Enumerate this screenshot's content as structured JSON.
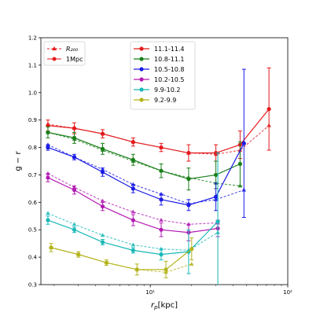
{
  "chart_data": {
    "type": "line",
    "xlabel": "r_p[kpc]",
    "xlabel_main": "r",
    "xlabel_sub": "p",
    "xlabel_unit": "[kpc]",
    "ylabel": "g − r",
    "xscale": "log",
    "xlim": [
      1.6,
      100
    ],
    "ylim": [
      0.3,
      1.2
    ],
    "xticks": [
      {
        "value": 10,
        "label": "10¹"
      },
      {
        "value": 100,
        "label": "10²"
      }
    ],
    "yticks": [
      0.3,
      0.4,
      0.5,
      0.6,
      0.7,
      0.8,
      0.9,
      1.0,
      1.1,
      1.2
    ],
    "ytick_labels": [
      "0.3",
      "0.4",
      "0.5",
      "0.6",
      "0.7",
      "0.8",
      "0.9",
      "1.0",
      "1.1",
      "1.2"
    ],
    "legend_style": [
      {
        "label": "R₂₀₀",
        "style": "dashed",
        "marker": "triangle"
      },
      {
        "label": "1Mpc",
        "style": "solid",
        "marker": "circle"
      }
    ],
    "legend_mass": [
      {
        "label": "11.1-11.4",
        "color": "#e41a1c"
      },
      {
        "label": "10.8-11.1",
        "color": "#1a7f1a"
      },
      {
        "label": "10.5-10.8",
        "color": "#1a1ae6"
      },
      {
        "label": "10.2-10.5",
        "color": "#b31ab3"
      },
      {
        "label": "9.9-10.2",
        "color": "#1ab8b8"
      },
      {
        "label": "9.2-9.9",
        "color": "#b3b31a"
      }
    ],
    "series": [
      {
        "color": "#e41a1c",
        "mpc": {
          "x": [
            1.8,
            2.8,
            4.5,
            7.5,
            12,
            19,
            30,
            45,
            73
          ],
          "y": [
            0.88,
            0.87,
            0.85,
            0.82,
            0.8,
            0.78,
            0.78,
            0.81,
            0.94
          ],
          "err": [
            0.02,
            0.02,
            0.015,
            0.015,
            0.015,
            0.03,
            0.03,
            0.05,
            0.15
          ]
        },
        "r200": {
          "x": [
            1.8,
            2.8,
            4.5,
            7.5,
            12,
            19,
            30,
            45,
            73
          ],
          "y": [
            0.885,
            0.87,
            0.85,
            0.82,
            0.8,
            0.78,
            0.775,
            0.79,
            0.88
          ]
        }
      },
      {
        "color": "#1a7f1a",
        "mpc": {
          "x": [
            1.8,
            2.8,
            4.5,
            7.5,
            12,
            19,
            30,
            45
          ],
          "y": [
            0.855,
            0.835,
            0.795,
            0.755,
            0.715,
            0.685,
            0.7,
            0.74
          ],
          "err": [
            0.02,
            0.02,
            0.02,
            0.02,
            0.025,
            0.04,
            0.05,
            0.08
          ]
        },
        "r200": {
          "x": [
            1.8,
            2.8,
            4.5,
            7.5,
            12,
            19,
            30,
            45
          ],
          "y": [
            0.855,
            0.83,
            0.79,
            0.75,
            0.715,
            0.69,
            0.67,
            0.66
          ]
        }
      },
      {
        "color": "#1a1ae6",
        "mpc": {
          "x": [
            1.8,
            2.8,
            4.5,
            7.5,
            12,
            19,
            30,
            48
          ],
          "y": [
            0.8,
            0.765,
            0.71,
            0.65,
            0.61,
            0.59,
            0.62,
            0.815
          ],
          "err": [
            0.01,
            0.01,
            0.015,
            0.015,
            0.02,
            0.02,
            0.05,
            0.27
          ]
        },
        "r200": {
          "x": [
            1.8,
            2.8,
            4.5,
            7.5,
            12,
            19,
            30,
            48
          ],
          "y": [
            0.81,
            0.765,
            0.72,
            0.665,
            0.63,
            0.595,
            0.61,
            0.645
          ]
        }
      },
      {
        "color": "#b31ab3",
        "mpc": {
          "x": [
            1.8,
            2.8,
            4.5,
            7.5,
            12,
            19,
            31
          ],
          "y": [
            0.69,
            0.645,
            0.585,
            0.535,
            0.5,
            0.49,
            0.505
          ],
          "err": [
            0.015,
            0.015,
            0.015,
            0.02,
            0.025,
            0.03,
            0.03
          ]
        },
        "r200": {
          "x": [
            1.8,
            2.8,
            4.5,
            7.5,
            12,
            19,
            31
          ],
          "y": [
            0.705,
            0.655,
            0.605,
            0.565,
            0.535,
            0.52,
            0.525
          ]
        }
      },
      {
        "color": "#1ab8b8",
        "mpc": {
          "x": [
            1.8,
            2.8,
            4.5,
            7.5,
            12,
            19,
            31
          ],
          "y": [
            0.535,
            0.5,
            0.455,
            0.425,
            0.41,
            0.42,
            0.53
          ],
          "err": [
            0.015,
            0.01,
            0.01,
            0.01,
            0.02,
            0.08,
            0.25
          ]
        },
        "r200": {
          "x": [
            1.8,
            2.8,
            4.5,
            7.5,
            12,
            19,
            31
          ],
          "y": [
            0.56,
            0.52,
            0.48,
            0.445,
            0.43,
            0.425,
            0.49
          ]
        }
      },
      {
        "color": "#b3b31a",
        "mpc": {
          "x": [
            1.9,
            3.0,
            4.8,
            8.0,
            13,
            20
          ],
          "y": [
            0.435,
            0.41,
            0.38,
            0.355,
            0.355,
            0.43
          ],
          "err": [
            0.015,
            0.01,
            0.01,
            0.02,
            0.03,
            0.04
          ]
        },
        "r200": {
          "x": [
            1.9,
            3.0,
            4.8,
            8.0,
            13,
            20
          ],
          "y": [
            0.435,
            0.41,
            0.38,
            0.355,
            0.345,
            0.375
          ]
        }
      }
    ]
  }
}
